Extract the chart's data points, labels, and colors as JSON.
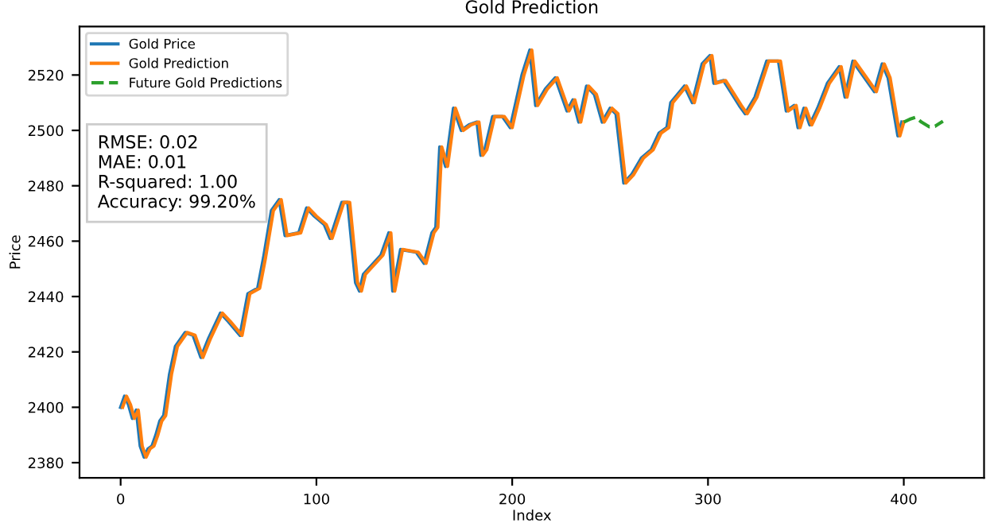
{
  "chart_data": {
    "type": "line",
    "title": "Gold Prediction",
    "xlabel": "Index",
    "ylabel": "Price",
    "xlim": [
      -21,
      441
    ],
    "xticks": [
      0,
      100,
      200,
      300,
      400
    ],
    "ylim": [
      2374.5,
      2537.5
    ],
    "yticks": [
      2380,
      2400,
      2420,
      2440,
      2460,
      2480,
      2500,
      2520
    ],
    "grid": false,
    "legend": "top left",
    "line_style": "solid",
    "marker": "none",
    "annotations": [
      "RMSE: 0.02\nMAE: 0.01\nR-squared: 1.00\nAccuracy: 99.20%"
    ],
    "series": [
      {
        "name": "Gold Price",
        "color": "#1f77b4",
        "x": [
          0,
          2,
          4,
          6,
          8,
          10,
          12,
          14,
          16,
          18,
          20,
          22,
          25,
          28,
          33,
          37,
          41,
          45,
          51,
          55,
          61,
          65,
          70,
          73,
          77,
          81,
          84,
          91,
          95,
          99,
          104,
          107,
          113,
          116,
          120,
          122,
          124,
          133,
          137,
          139,
          143,
          151,
          155,
          159,
          161,
          163,
          166,
          170,
          174,
          178,
          182,
          184,
          186,
          190,
          195,
          199,
          205,
          209,
          212,
          217,
          222,
          228,
          231,
          234,
          238,
          242,
          246,
          250,
          253,
          257,
          261,
          266,
          271,
          275,
          279,
          281,
          288,
          292,
          297,
          301,
          303,
          308,
          316,
          319,
          324,
          330,
          336,
          340,
          344,
          346,
          349,
          352,
          356,
          361,
          367,
          370,
          374,
          385,
          389,
          392,
          397,
          399
        ],
        "values": [
          2400,
          2404,
          2401,
          2396,
          2399,
          2386,
          2382,
          2385,
          2386,
          2390,
          2395,
          2397,
          2412,
          2422,
          2427,
          2426,
          2418,
          2425,
          2434,
          2431,
          2426,
          2441,
          2443,
          2454,
          2471,
          2475,
          2462,
          2463,
          2472,
          2469,
          2466,
          2461,
          2474,
          2474,
          2445,
          2442,
          2448,
          2455,
          2463,
          2442,
          2457,
          2456,
          2452,
          2463,
          2465,
          2494,
          2487,
          2508,
          2500,
          2502,
          2503,
          2491,
          2493,
          2505,
          2505,
          2501,
          2520,
          2529,
          2509,
          2515,
          2519,
          2507,
          2511,
          2503,
          2516,
          2513,
          2503,
          2508,
          2506,
          2481,
          2484,
          2490,
          2493,
          2499,
          2501,
          2510,
          2516,
          2510,
          2524,
          2527,
          2517,
          2518,
          2509,
          2506,
          2512,
          2525,
          2525,
          2507,
          2509,
          2501,
          2508,
          2502,
          2508,
          2517,
          2523,
          2512,
          2525,
          2514,
          2524,
          2519,
          2498,
          2503
        ]
      },
      {
        "name": "Gold Prediction",
        "color": "#ff7f0e",
        "x": [
          1,
          3,
          5,
          7,
          9,
          11,
          13,
          15,
          17,
          19,
          21,
          23,
          26,
          29,
          34,
          38,
          42,
          46,
          52,
          56,
          62,
          66,
          71,
          74,
          78,
          82,
          85,
          92,
          96,
          100,
          105,
          108,
          114,
          117,
          121,
          123,
          125,
          134,
          138,
          140,
          144,
          152,
          156,
          160,
          162,
          164,
          167,
          171,
          175,
          179,
          183,
          185,
          187,
          191,
          196,
          200,
          206,
          210,
          213,
          218,
          223,
          229,
          232,
          235,
          239,
          243,
          247,
          251,
          254,
          258,
          262,
          267,
          272,
          276,
          280,
          282,
          289,
          293,
          298,
          302,
          304,
          309,
          317,
          320,
          325,
          331,
          337,
          341,
          345,
          347,
          350,
          353,
          357,
          362,
          368,
          371,
          375,
          386,
          390,
          393,
          398,
          400
        ],
        "values": [
          2400,
          2404,
          2401,
          2396,
          2399,
          2386,
          2382,
          2385,
          2386,
          2390,
          2395,
          2397,
          2412,
          2422,
          2427,
          2426,
          2418,
          2425,
          2434,
          2431,
          2426,
          2441,
          2443,
          2454,
          2471,
          2475,
          2462,
          2463,
          2472,
          2469,
          2466,
          2461,
          2474,
          2474,
          2445,
          2442,
          2448,
          2455,
          2463,
          2442,
          2457,
          2456,
          2452,
          2463,
          2465,
          2494,
          2487,
          2508,
          2500,
          2502,
          2503,
          2491,
          2493,
          2505,
          2505,
          2501,
          2520,
          2529,
          2509,
          2515,
          2519,
          2507,
          2511,
          2503,
          2516,
          2513,
          2503,
          2508,
          2506,
          2481,
          2484,
          2490,
          2493,
          2499,
          2501,
          2510,
          2516,
          2510,
          2524,
          2527,
          2517,
          2518,
          2509,
          2506,
          2512,
          2525,
          2525,
          2507,
          2509,
          2501,
          2508,
          2502,
          2508,
          2517,
          2523,
          2512,
          2525,
          2514,
          2524,
          2519,
          2498,
          2503
        ]
      },
      {
        "name": "Future Gold Predictions",
        "color": "#2ca02c",
        "line_style": "dashed",
        "x": [
          400,
          403,
          406,
          409,
          413,
          416,
          420
        ],
        "values": [
          2503,
          2504,
          2504.7,
          2503,
          2501.3,
          2501.5,
          2503.3
        ]
      }
    ]
  }
}
